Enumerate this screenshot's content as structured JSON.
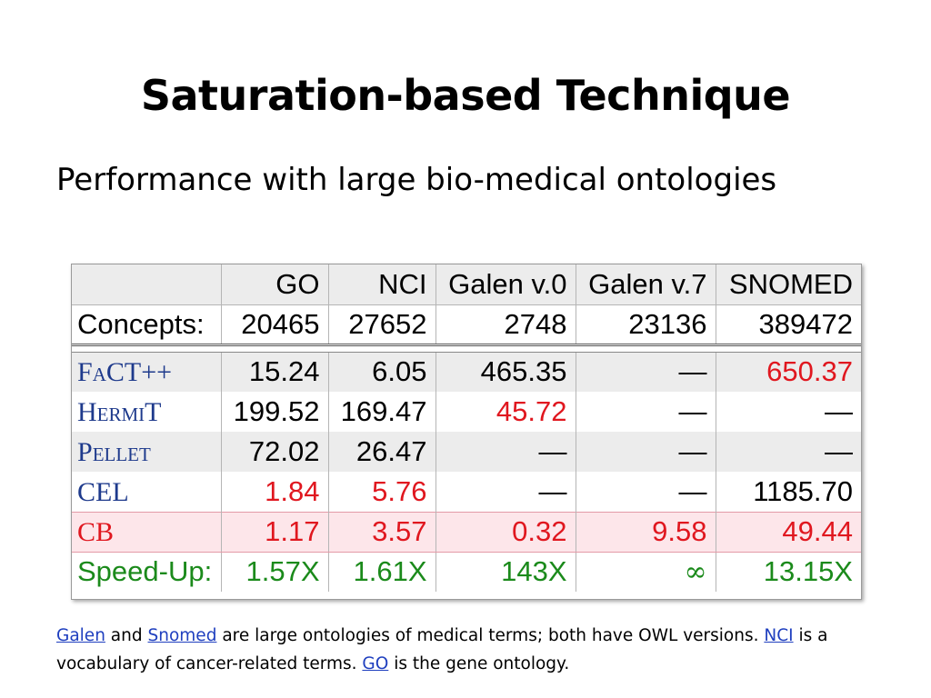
{
  "title": "Saturation-based Technique",
  "subtitle": "Performance with large bio-medical ontologies",
  "table": {
    "headers": [
      "",
      "GO",
      "NCI",
      "Galen v.0",
      "Galen v.7",
      "SNOMED"
    ],
    "concepts": {
      "label": "Concepts:",
      "values": [
        "20465",
        "27652",
        "2748",
        "23136",
        "389472"
      ]
    },
    "rows": [
      {
        "label": "FaCT++",
        "values": [
          "15.24",
          "6.05",
          "465.35",
          "—",
          "650.37"
        ],
        "label_color": "#1e3a8c",
        "highlight": [
          false,
          false,
          false,
          false,
          true
        ]
      },
      {
        "label": "HermiT",
        "values": [
          "199.52",
          "169.47",
          "45.72",
          "—",
          "—"
        ],
        "label_color": "#1e3a8c",
        "highlight": [
          false,
          false,
          true,
          false,
          false
        ]
      },
      {
        "label": "Pellet",
        "values": [
          "72.02",
          "26.47",
          "—",
          "—",
          "—"
        ],
        "label_color": "#1e3a8c",
        "highlight": [
          false,
          false,
          false,
          false,
          false
        ]
      },
      {
        "label": "CEL",
        "values": [
          "1.84",
          "5.76",
          "—",
          "—",
          "1185.70"
        ],
        "label_color": "#1e3a8c",
        "highlight": [
          true,
          true,
          false,
          false,
          false
        ]
      },
      {
        "label": "CB",
        "values": [
          "1.17",
          "3.57",
          "0.32",
          "9.58",
          "49.44"
        ],
        "label_color": "#e0171f",
        "highlight": [
          true,
          true,
          true,
          true,
          true
        ]
      }
    ],
    "speedup": {
      "label": "Speed-Up:",
      "values": [
        "1.57X",
        "1.61X",
        "143X",
        "∞",
        "13.15X"
      ]
    }
  },
  "caption": {
    "link1": "Galen",
    "t1": " and ",
    "link2": "Snomed",
    "t2": " are large ontologies of medical terms; both have OWL versions. ",
    "link3": "NCI",
    "t3": " is a vocabulary of cancer-related terms. ",
    "link4": "GO",
    "t4": " is the gene ontology."
  },
  "colors": {
    "reasoner_blue": "#1e3a8c",
    "highlight_red": "#e0171f",
    "speedup_green": "#1b8a1b",
    "cb_row_bg": "#fde6ea",
    "link_blue": "#1f3fbf"
  }
}
